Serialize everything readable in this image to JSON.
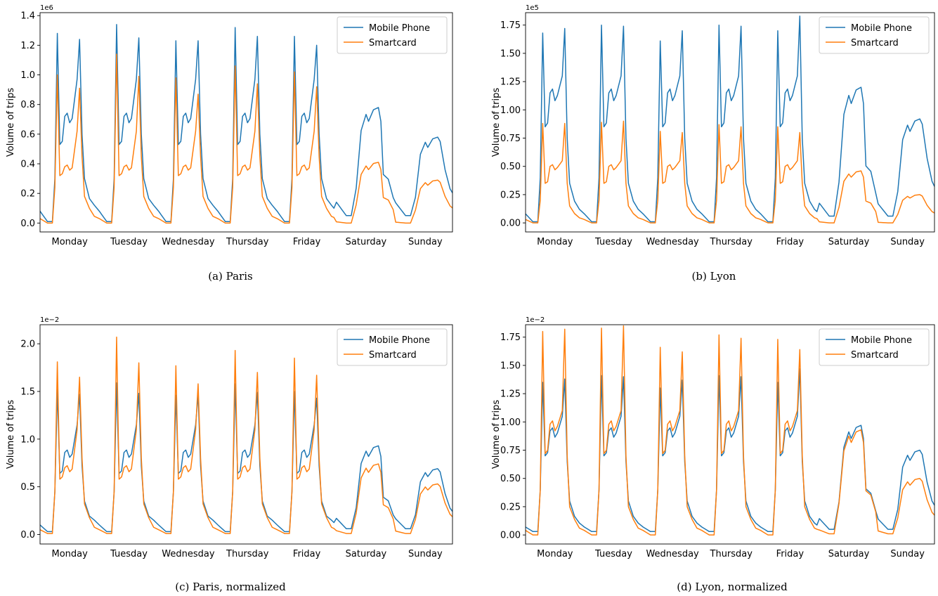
{
  "figure": {
    "colors": {
      "mobile": "#1f77b4",
      "smartcard": "#ff7f0e"
    },
    "days": [
      "Monday",
      "Tuesday",
      "Wednesday",
      "Thursday",
      "Friday",
      "Saturday",
      "Sunday"
    ]
  },
  "chart_data": [
    {
      "type": "line",
      "caption": "(a) Paris",
      "ylabel": "Volume of trips",
      "offset_text": "1e6",
      "ylim": [
        -0.06,
        1.42
      ],
      "yticks": [
        0.0,
        0.2,
        0.4,
        0.6,
        0.8,
        1.0,
        1.2,
        1.4
      ],
      "ytick_labels": [
        "0.0",
        "0.2",
        "0.4",
        "0.6",
        "0.8",
        "1.0",
        "1.2",
        "1.4"
      ],
      "xlim": [
        0,
        167
      ],
      "legend_position": "top-right",
      "weekday": {
        "mobile": {
          "base": 0.08,
          "night": 0.01,
          "pre": 0.3,
          "am": 1.28,
          "post": 0.53,
          "mid": 0.72,
          "pre2": 0.97,
          "pm": 1.24,
          "post2": 0.6,
          "eve": 0.3
        },
        "smartcard": {
          "base": 0.03,
          "night": 0.0,
          "pre": 0.24,
          "am": 1.0,
          "post": 0.32,
          "mid": 0.38,
          "pre2": 0.62,
          "pm": 0.91,
          "post2": 0.45,
          "eve": 0.18
        }
      },
      "series": [
        {
          "name": "Mobile Phone",
          "key": "mobile",
          "am": [
            1.28,
            1.34,
            1.23,
            1.32,
            1.26
          ],
          "pm": [
            1.24,
            1.25,
            1.23,
            1.26,
            1.2
          ],
          "sat": 0.78,
          "sun": 0.58,
          "weekend_low": 0.05
        },
        {
          "name": "Smartcard",
          "key": "smartcard",
          "am": [
            1.0,
            1.14,
            0.98,
            1.06,
            1.02
          ],
          "pm": [
            0.91,
            0.99,
            0.87,
            0.94,
            0.92
          ],
          "sat": 0.41,
          "sun": 0.29,
          "weekend_low": 0.0
        }
      ]
    },
    {
      "type": "line",
      "caption": "(b) Lyon",
      "ylabel": "Volume of trips",
      "offset_text": "1e5",
      "ylim": [
        -0.08,
        1.86
      ],
      "yticks": [
        0.0,
        0.25,
        0.5,
        0.75,
        1.0,
        1.25,
        1.5,
        1.75
      ],
      "ytick_labels": [
        "0.00",
        "0.25",
        "0.50",
        "0.75",
        "1.00",
        "1.25",
        "1.50",
        "1.75"
      ],
      "xlim": [
        0,
        167
      ],
      "legend_position": "top-right",
      "weekday": {
        "mobile": {
          "base": 0.08,
          "night": 0.01,
          "pre": 0.4,
          "am": 1.7,
          "post": 0.85,
          "mid": 1.15,
          "pre2": 1.3,
          "pm": 1.72,
          "post2": 0.75,
          "eve": 0.35
        },
        "smartcard": {
          "base": 0.03,
          "night": 0.0,
          "pre": 0.2,
          "am": 0.88,
          "post": 0.35,
          "mid": 0.5,
          "pre2": 0.55,
          "pm": 0.88,
          "post2": 0.35,
          "eve": 0.15
        }
      },
      "series": [
        {
          "name": "Mobile Phone",
          "key": "mobile",
          "am": [
            1.68,
            1.75,
            1.61,
            1.75,
            1.7
          ],
          "pm": [
            1.72,
            1.74,
            1.7,
            1.74,
            1.83
          ],
          "sat": 1.2,
          "sun": 0.92,
          "weekend_low": 0.06
        },
        {
          "name": "Smartcard",
          "key": "smartcard",
          "am": [
            0.88,
            0.89,
            0.81,
            0.87,
            0.85
          ],
          "pm": [
            0.88,
            0.9,
            0.8,
            0.85,
            0.8
          ],
          "sat": 0.46,
          "sun": 0.25,
          "weekend_low": 0.0
        }
      ]
    },
    {
      "type": "line",
      "caption": "(c) Paris, normalized",
      "ylabel": "Volume of trips",
      "offset_text": "1e−2",
      "ylim": [
        -0.1,
        2.2
      ],
      "yticks": [
        0.0,
        0.5,
        1.0,
        1.5,
        2.0
      ],
      "ytick_labels": [
        "0.0",
        "0.5",
        "1.0",
        "1.5",
        "2.0"
      ],
      "xlim": [
        0,
        167
      ],
      "legend_position": "top-right",
      "weekday": {
        "mobile": {
          "base": 0.1,
          "night": 0.03,
          "pre": 0.45,
          "am": 1.52,
          "post": 0.64,
          "mid": 0.86,
          "pre2": 1.15,
          "pm": 1.47,
          "post2": 0.72,
          "eve": 0.35
        },
        "smartcard": {
          "base": 0.05,
          "night": 0.01,
          "pre": 0.45,
          "am": 1.81,
          "post": 0.58,
          "mid": 0.7,
          "pre2": 1.1,
          "pm": 1.65,
          "post2": 0.8,
          "eve": 0.32
        }
      },
      "series": [
        {
          "name": "Mobile Phone",
          "key": "mobile",
          "am": [
            1.52,
            1.59,
            1.46,
            1.58,
            1.5
          ],
          "pm": [
            1.47,
            1.48,
            1.47,
            1.49,
            1.43
          ],
          "sat": 0.93,
          "sun": 0.69,
          "weekend_low": 0.06
        },
        {
          "name": "Smartcard",
          "key": "smartcard",
          "am": [
            1.81,
            2.07,
            1.77,
            1.93,
            1.85
          ],
          "pm": [
            1.65,
            1.8,
            1.58,
            1.7,
            1.67
          ],
          "sat": 0.74,
          "sun": 0.53,
          "weekend_low": 0.01
        }
      ]
    },
    {
      "type": "line",
      "caption": "(d) Lyon, normalized",
      "ylabel": "Volume of trips",
      "offset_text": "1e−2",
      "ylim": [
        -0.08,
        1.86
      ],
      "yticks": [
        0.0,
        0.25,
        0.5,
        0.75,
        1.0,
        1.25,
        1.5,
        1.75
      ],
      "ytick_labels": [
        "0.00",
        "0.25",
        "0.50",
        "0.75",
        "1.00",
        "1.25",
        "1.50",
        "1.75"
      ],
      "xlim": [
        0,
        167
      ],
      "legend_position": "top-right",
      "weekday": {
        "mobile": {
          "base": 0.07,
          "night": 0.03,
          "pre": 0.4,
          "am": 1.35,
          "post": 0.7,
          "mid": 0.92,
          "pre2": 1.05,
          "pm": 1.38,
          "post2": 0.65,
          "eve": 0.3
        },
        "smartcard": {
          "base": 0.04,
          "night": 0.0,
          "pre": 0.4,
          "am": 1.8,
          "post": 0.72,
          "mid": 0.98,
          "pre2": 1.1,
          "pm": 1.82,
          "post2": 0.7,
          "eve": 0.25
        }
      },
      "series": [
        {
          "name": "Mobile Phone",
          "key": "mobile",
          "am": [
            1.35,
            1.41,
            1.3,
            1.41,
            1.35
          ],
          "pm": [
            1.38,
            1.4,
            1.37,
            1.4,
            1.47
          ],
          "sat": 0.97,
          "sun": 0.75,
          "weekend_low": 0.05
        },
        {
          "name": "Smartcard",
          "key": "smartcard",
          "am": [
            1.8,
            1.83,
            1.66,
            1.77,
            1.73
          ],
          "pm": [
            1.82,
            1.85,
            1.62,
            1.74,
            1.64
          ],
          "sat": 0.93,
          "sun": 0.5,
          "weekend_low": 0.01
        }
      ]
    }
  ]
}
